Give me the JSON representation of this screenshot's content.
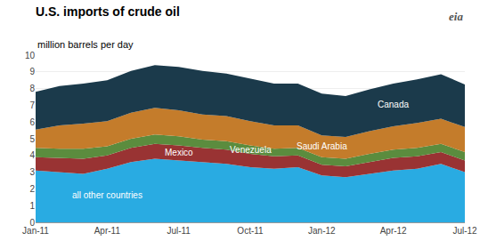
{
  "chart_data": {
    "type": "area",
    "stacked": true,
    "title": "U.S. imports of crude oil",
    "subtitle": "million barrels per day",
    "annotations": [
      "eia"
    ],
    "categories": [
      "Jan-11",
      null,
      null,
      "Apr-11",
      null,
      null,
      "Jul-11",
      null,
      null,
      "Oct-11",
      null,
      null,
      "Jan-12",
      null,
      null,
      "Apr-12",
      null,
      null,
      "Jul-12"
    ],
    "series": [
      {
        "name": "all other countries",
        "color": "#29ABE2",
        "values": [
          3.1,
          3.0,
          2.9,
          3.2,
          3.6,
          3.8,
          3.7,
          3.6,
          3.5,
          3.3,
          3.2,
          3.3,
          2.8,
          2.7,
          2.9,
          3.1,
          3.2,
          3.5,
          3.0
        ]
      },
      {
        "name": "Mexico",
        "color": "#993333",
        "values": [
          0.8,
          0.85,
          0.9,
          0.8,
          0.85,
          0.9,
          0.9,
          0.85,
          0.85,
          0.8,
          0.75,
          0.7,
          0.65,
          0.65,
          0.7,
          0.75,
          0.75,
          0.7,
          0.7
        ]
      },
      {
        "name": "Venezuela",
        "color": "#5B8C3E",
        "values": [
          0.55,
          0.55,
          0.6,
          0.55,
          0.55,
          0.55,
          0.55,
          0.5,
          0.5,
          0.5,
          0.45,
          0.45,
          0.45,
          0.45,
          0.5,
          0.5,
          0.5,
          0.5,
          0.5
        ]
      },
      {
        "name": "Saudi Arabia",
        "color": "#C47C2B",
        "values": [
          1.1,
          1.4,
          1.5,
          1.5,
          1.55,
          1.6,
          1.55,
          1.5,
          1.5,
          1.45,
          1.4,
          1.35,
          1.3,
          1.3,
          1.35,
          1.4,
          1.5,
          1.5,
          1.5
        ]
      },
      {
        "name": "Canada",
        "color": "#1B3A4B",
        "values": [
          2.25,
          2.35,
          2.4,
          2.45,
          2.5,
          2.55,
          2.6,
          2.6,
          2.55,
          2.55,
          2.5,
          2.5,
          2.5,
          2.45,
          2.5,
          2.55,
          2.6,
          2.65,
          2.55
        ]
      }
    ],
    "ylim": [
      0,
      10
    ],
    "yticks": [
      0,
      1,
      2,
      3,
      4,
      5,
      6,
      7,
      8,
      9,
      10
    ],
    "grid": true
  }
}
